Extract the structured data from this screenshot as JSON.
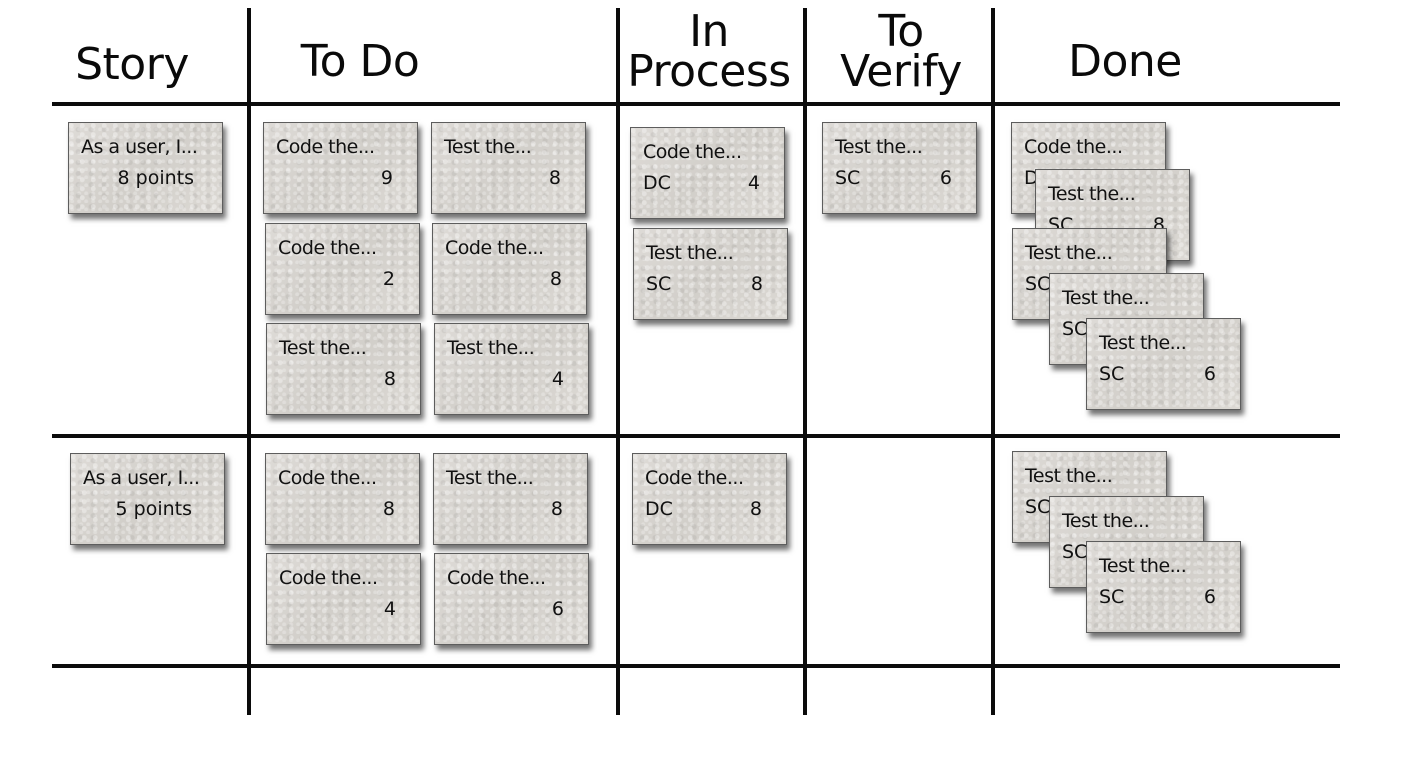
{
  "headers": {
    "story": [
      "Story"
    ],
    "todo": [
      "To Do"
    ],
    "in_process": [
      "In",
      "Process"
    ],
    "to_verify": [
      "To",
      "Verify"
    ],
    "done": [
      "Done"
    ]
  },
  "rows": [
    {
      "story": {
        "title": "As a user, I...",
        "points": "8 points"
      },
      "todo": [
        {
          "title": "Code the...",
          "tag": "",
          "hours": "9"
        },
        {
          "title": "Test the...",
          "tag": "",
          "hours": "8"
        },
        {
          "title": "Code the...",
          "tag": "",
          "hours": "2"
        },
        {
          "title": "Code the...",
          "tag": "",
          "hours": "8"
        },
        {
          "title": "Test the...",
          "tag": "",
          "hours": "8"
        },
        {
          "title": "Test the...",
          "tag": "",
          "hours": "4"
        }
      ],
      "in_process": [
        {
          "title": "Code the...",
          "tag": "DC",
          "hours": "4"
        },
        {
          "title": "Test the...",
          "tag": "SC",
          "hours": "8"
        }
      ],
      "to_verify": [
        {
          "title": "Test the...",
          "tag": "SC",
          "hours": "6"
        }
      ],
      "done": [
        {
          "title": "Code the...",
          "tag": "DC",
          "hours": ""
        },
        {
          "title": "Test the...",
          "tag": "SC",
          "hours": "8"
        },
        {
          "title": "Test the...",
          "tag": "SC",
          "hours": ""
        },
        {
          "title": "Test the...",
          "tag": "SC",
          "hours": ""
        },
        {
          "title": "Test the...",
          "tag": "SC",
          "hours": "6"
        }
      ]
    },
    {
      "story": {
        "title": "As a user, I...",
        "points": "5 points"
      },
      "todo": [
        {
          "title": "Code the...",
          "tag": "",
          "hours": "8"
        },
        {
          "title": "Test the...",
          "tag": "",
          "hours": "8"
        },
        {
          "title": "Code the...",
          "tag": "",
          "hours": "4"
        },
        {
          "title": "Code the...",
          "tag": "",
          "hours": "6"
        }
      ],
      "in_process": [
        {
          "title": "Code the...",
          "tag": "DC",
          "hours": "8"
        }
      ],
      "to_verify": [],
      "done": [
        {
          "title": "Test the...",
          "tag": "SC",
          "hours": ""
        },
        {
          "title": "Test the...",
          "tag": "SC",
          "hours": ""
        },
        {
          "title": "Test the...",
          "tag": "SC",
          "hours": "6"
        }
      ]
    }
  ]
}
